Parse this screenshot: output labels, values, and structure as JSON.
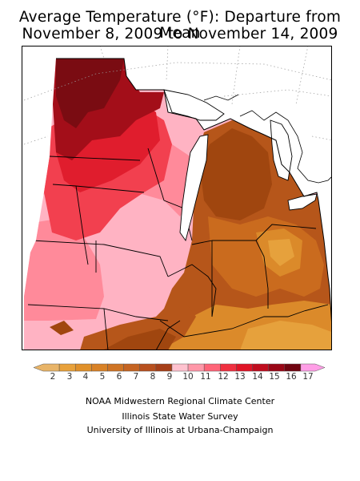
{
  "header": {
    "title_line1": "Average Temperature (°F): Departure from Mean",
    "title_line2": "November 8, 2009 to November 14, 2009"
  },
  "legend": {
    "labels": [
      "2",
      "3",
      "4",
      "5",
      "6",
      "7",
      "8",
      "9",
      "10",
      "11",
      "12",
      "13",
      "14",
      "15",
      "16",
      "17"
    ],
    "colors": [
      "#e8b468",
      "#e8a13a",
      "#e0902a",
      "#d98226",
      "#cf7424",
      "#c56422",
      "#b8501e",
      "#a63f18",
      "#ffc2cf",
      "#ff97a8",
      "#ff6478",
      "#f03040",
      "#e01426",
      "#c00c1e",
      "#9a0616",
      "#700410",
      "#ff9ee6"
    ]
  },
  "map": {
    "region": "Midwestern United States",
    "palette": {
      "dark_red": "#7a0c12",
      "red1": "#a30e19",
      "red2": "#e01d2d",
      "red3": "#f2404f",
      "pink1": "#ff8a9a",
      "pink2": "#ffb3c3",
      "brown1": "#a0460f",
      "brown2": "#b6561a",
      "orange1": "#ca6b1e",
      "orange2": "#db8a2a",
      "orange3": "#e6a13c",
      "border": "#000000",
      "grid": "#9a9a9a"
    }
  },
  "credits": {
    "line1": "NOAA Midwestern Regional Climate Center",
    "line2": "Illinois State Water Survey",
    "line3": "University of Illinois at Urbana-Champaign"
  }
}
